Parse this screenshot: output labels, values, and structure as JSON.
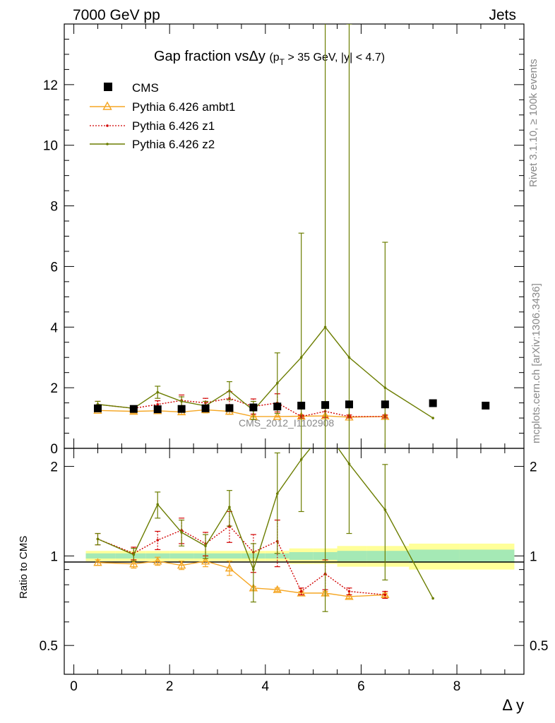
{
  "header": {
    "energy": "7000 GeV pp",
    "category": "Jets"
  },
  "title": {
    "main": "Gap fraction vsΔy",
    "cut_p": "(p",
    "cut_sub": "T",
    "cut_rest": " > 35 GeV, |y| < 4.7)"
  },
  "side_labels": {
    "rivet": "Rivet 3.1.10, ≥ 100k events",
    "mcplots": "mcplots.cern.ch [arXiv:1306.3436]"
  },
  "watermark": "CMS_2012_I1102908",
  "xlabel": "Δ y",
  "ratio_ylabel": "Ratio to CMS",
  "main_yticks": [
    "0",
    "2",
    "4",
    "6",
    "8",
    "10",
    "12"
  ],
  "ratio_yticks": [
    "0.5",
    "1",
    "2"
  ],
  "xticks": [
    "0",
    "2",
    "4",
    "6",
    "8"
  ],
  "legend": [
    "CMS",
    "Pythia 6.426 ambt1",
    "Pythia 6.426 z1",
    "Pythia 6.426 z2"
  ],
  "colors": {
    "data": "#000000",
    "ambt1": "#f5a623",
    "z1": "#d10000",
    "z2": "#6b7d00",
    "band_inner": "#7fe0c0",
    "band_outer": "#ffff99"
  },
  "chart_data": {
    "type": "scatter",
    "xlim": [
      -0.2,
      9.4
    ],
    "main_ylim": [
      0,
      14
    ],
    "ratio_ylim": [
      0.4,
      2.3
    ],
    "data": {
      "name": "CMS",
      "x": [
        0.5,
        1.25,
        1.75,
        2.25,
        2.75,
        3.25,
        3.75,
        4.25,
        4.75,
        5.25,
        5.75,
        6.5,
        7.5,
        8.6
      ],
      "y": [
        1.32,
        1.3,
        1.29,
        1.3,
        1.32,
        1.33,
        1.35,
        1.38,
        1.41,
        1.43,
        1.45,
        1.45,
        1.49,
        1.41
      ],
      "ratio_band_half": [
        0.02,
        0.02,
        0.02,
        0.02,
        0.02,
        0.02,
        0.02,
        0.02,
        0.03,
        0.03,
        0.04,
        0.04,
        0.05,
        0.05
      ]
    },
    "series": [
      {
        "name": "Pythia 6.426 ambt1",
        "key": "ambt1",
        "x": [
          0.5,
          1.25,
          1.75,
          2.25,
          2.75,
          3.25,
          3.75,
          4.25,
          4.75,
          5.25,
          5.75,
          6.5
        ],
        "y": [
          1.25,
          1.22,
          1.24,
          1.2,
          1.27,
          1.22,
          1.05,
          1.05,
          1.06,
          1.07,
          1.03,
          1.05
        ],
        "err": [
          0.05,
          0.06,
          0.08,
          0.08,
          0.1,
          0.1,
          0.02,
          0.02,
          0.02,
          0.02,
          0.02,
          0.02
        ],
        "ratio": [
          0.95,
          0.94,
          0.96,
          0.93,
          0.96,
          0.91,
          0.78,
          0.77,
          0.75,
          0.75,
          0.73,
          0.74
        ],
        "ratio_err": [
          0.02,
          0.03,
          0.03,
          0.03,
          0.04,
          0.05,
          0.01,
          0.01,
          0.01,
          0.01,
          0.01,
          0.01
        ]
      },
      {
        "name": "Pythia 6.426 z1",
        "key": "z1",
        "x": [
          0.5,
          1.25,
          1.75,
          2.25,
          2.75,
          3.25,
          3.75,
          4.25,
          4.75,
          5.25,
          5.75,
          6.5
        ],
        "y": [
          1.45,
          1.32,
          1.45,
          1.58,
          1.5,
          1.65,
          1.38,
          1.5,
          1.05,
          1.22,
          1.05,
          1.05
        ],
        "err": [
          0.1,
          0.08,
          0.12,
          0.18,
          0.15,
          0.22,
          0.25,
          0.3,
          0.05,
          0.2,
          0.05,
          0.05
        ],
        "ratio": [
          1.14,
          1.02,
          1.13,
          1.22,
          1.1,
          1.26,
          1.03,
          1.12,
          0.76,
          0.87,
          0.76,
          0.74
        ],
        "ratio_err": [
          0.05,
          0.05,
          0.08,
          0.12,
          0.1,
          0.15,
          0.15,
          0.2,
          0.02,
          0.1,
          0.02,
          0.02
        ]
      },
      {
        "name": "Pythia 6.426 z2",
        "key": "z2",
        "x": [
          0.5,
          1.25,
          1.75,
          2.25,
          2.75,
          3.25,
          3.75,
          4.25,
          4.75,
          5.25,
          5.75,
          6.5,
          7.5
        ],
        "y": [
          1.45,
          1.32,
          1.85,
          1.55,
          1.4,
          1.9,
          1.25,
          2.15,
          3.0,
          4.0,
          3.0,
          2.0,
          1.0
        ],
        "err": [
          0.1,
          0.08,
          0.2,
          0.15,
          0.15,
          0.3,
          0.3,
          1.0,
          4.1,
          10.5,
          11.0,
          4.8,
          0.0
        ],
        "ratio": [
          1.14,
          1.01,
          1.49,
          1.2,
          1.08,
          1.46,
          0.9,
          1.62,
          2.11,
          2.65,
          2.04,
          1.43,
          0.72
        ],
        "ratio_err": [
          0.05,
          0.05,
          0.15,
          0.12,
          0.1,
          0.2,
          0.2,
          0.6,
          0.7,
          2.0,
          0.85,
          0.6,
          0.0
        ]
      }
    ]
  }
}
